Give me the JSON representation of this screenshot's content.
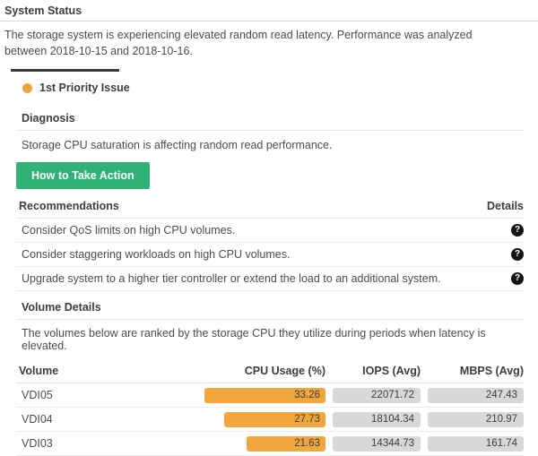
{
  "page": {
    "title": "System Status",
    "description": "The storage system is experiencing elevated random read latency. Performance was analyzed between 2018-10-15 and 2018-10-16."
  },
  "tab": {
    "label": "1st Priority Issue"
  },
  "diagnosis": {
    "heading": "Diagnosis",
    "text": "Storage CPU saturation is affecting random read performance.",
    "action_button_label": "How to Take Action"
  },
  "recommendations": {
    "heading": "Recommendations",
    "details_label": "Details",
    "help_icon_glyph": "?",
    "items": [
      {
        "text": "Consider QoS limits on high CPU volumes."
      },
      {
        "text": "Consider staggering workloads on high CPU volumes."
      },
      {
        "text": "Upgrade system to a higher tier controller or extend the load to an additional system."
      }
    ]
  },
  "volume_details": {
    "heading": "Volume Details",
    "text": "The volumes below are ranked by the storage CPU they utilize during periods when latency is elevated.",
    "table": {
      "headers": [
        "Volume",
        "CPU Usage (%)",
        "IOPS (Avg)",
        "MBPS (Avg)"
      ],
      "rows": [
        {
          "volume": "VDI05",
          "cpu_usage_pct": "33.26",
          "iops_avg": "22071.72",
          "mbps_avg": "247.43"
        },
        {
          "volume": "VDI04",
          "cpu_usage_pct": "27.73",
          "iops_avg": "18104.34",
          "mbps_avg": "210.97"
        },
        {
          "volume": "VDI03",
          "cpu_usage_pct": "21.63",
          "iops_avg": "14344.73",
          "mbps_avg": "161.74"
        }
      ]
    }
  },
  "colors": {
    "accent_orange": "#f0a63c",
    "action_green": "#2eb278",
    "pill_gray": "#d8d8d8",
    "icon_black": "#141414",
    "tab_indicator": "#3b3b3b"
  }
}
